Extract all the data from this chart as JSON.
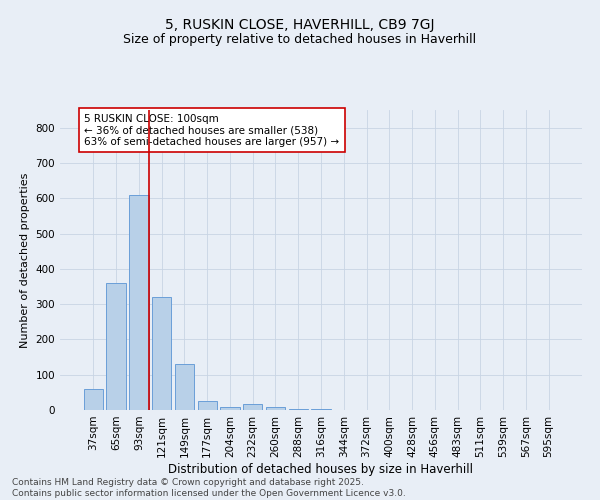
{
  "title1": "5, RUSKIN CLOSE, HAVERHILL, CB9 7GJ",
  "title2": "Size of property relative to detached houses in Haverhill",
  "xlabel": "Distribution of detached houses by size in Haverhill",
  "ylabel": "Number of detached properties",
  "categories": [
    "37sqm",
    "65sqm",
    "93sqm",
    "121sqm",
    "149sqm",
    "177sqm",
    "204sqm",
    "232sqm",
    "260sqm",
    "288sqm",
    "316sqm",
    "344sqm",
    "372sqm",
    "400sqm",
    "428sqm",
    "456sqm",
    "483sqm",
    "511sqm",
    "539sqm",
    "567sqm",
    "595sqm"
  ],
  "values": [
    60,
    360,
    610,
    320,
    130,
    25,
    8,
    18,
    8,
    2,
    2,
    0,
    0,
    0,
    0,
    0,
    0,
    0,
    0,
    0,
    0
  ],
  "bar_color": "#b8d0e8",
  "bar_edgecolor": "#6a9fd8",
  "vline_color": "#cc0000",
  "annotation_text": "5 RUSKIN CLOSE: 100sqm\n← 36% of detached houses are smaller (538)\n63% of semi-detached houses are larger (957) →",
  "annotation_box_color": "white",
  "annotation_box_edgecolor": "#cc0000",
  "ylim": [
    0,
    850
  ],
  "yticks": [
    0,
    100,
    200,
    300,
    400,
    500,
    600,
    700,
    800
  ],
  "grid_color": "#c8d4e4",
  "background_color": "#e8eef6",
  "footnote": "Contains HM Land Registry data © Crown copyright and database right 2025.\nContains public sector information licensed under the Open Government Licence v3.0.",
  "title1_fontsize": 10,
  "title2_fontsize": 9,
  "xlabel_fontsize": 8.5,
  "ylabel_fontsize": 8,
  "tick_fontsize": 7.5,
  "annotation_fontsize": 7.5,
  "footnote_fontsize": 6.5
}
